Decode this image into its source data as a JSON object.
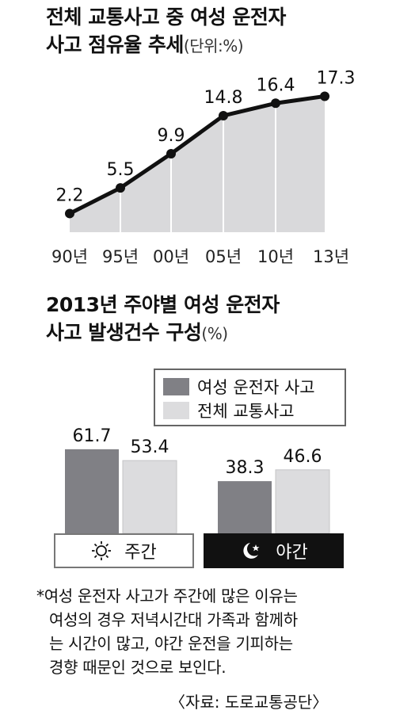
{
  "chart1": {
    "title_line1": "전체 교통사고 중 여성 운전자",
    "title_line2": "사고 점유율 추세",
    "unit": "(단위:%)"
  },
  "chart2": {
    "title_line1": "2013년 주야별 여성 운전자",
    "title_line2": "사고 발생건수 구성",
    "unit": "(%)",
    "day_label": "주간",
    "night_label": "야간"
  },
  "colors": {
    "line": "#111111",
    "area": "#d9d9db",
    "series_female": "#808085",
    "series_total": "#dcdcde"
  },
  "chart_data": [
    {
      "type": "area",
      "title": "전체 교통사고 중 여성 운전자 사고 점유율 추세",
      "unit": "%",
      "categories": [
        "90년",
        "95년",
        "00년",
        "05년",
        "10년",
        "13년"
      ],
      "values": [
        2.2,
        5.5,
        9.9,
        14.8,
        16.4,
        17.3
      ],
      "value_labels": [
        "2.2",
        "5.5",
        "9.9",
        "14.8",
        "16.4",
        "17.3"
      ],
      "grid": false
    },
    {
      "type": "bar",
      "title": "2013년 주야별 여성 운전자 사고 발생건수 구성",
      "unit": "%",
      "categories": [
        "주간",
        "야간"
      ],
      "series": [
        {
          "name": "여성 운전자 사고",
          "values": [
            61.7,
            38.3
          ],
          "labels": [
            "61.7",
            "38.3"
          ]
        },
        {
          "name": "전체 교통사고",
          "values": [
            53.4,
            46.6
          ],
          "labels": [
            "53.4",
            "46.6"
          ]
        }
      ],
      "legend": "top-right"
    }
  ],
  "note": {
    "line1": "*여성 운전자 사고가 주간에 많은 이유는",
    "line2": "여성의 경우 저녁시간대 가족과 함께하",
    "line3": "는 시간이 많고, 야간 운전을 기피하는",
    "line4": "경향 때문인 것으로 보인다."
  },
  "source": "〈자료: 도로교통공단〉"
}
